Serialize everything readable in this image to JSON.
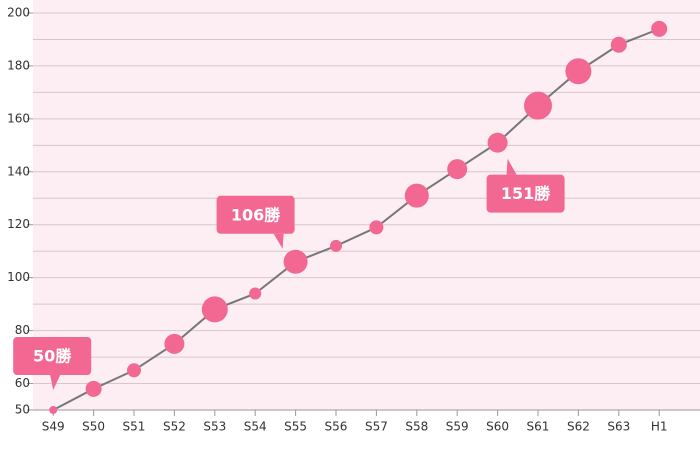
{
  "chart_data": {
    "type": "line",
    "categories": [
      "S49",
      "S50",
      "S51",
      "S52",
      "S53",
      "S54",
      "S55",
      "S56",
      "S57",
      "S58",
      "S59",
      "S60",
      "S61",
      "S62",
      "S63",
      "H1"
    ],
    "values": [
      50,
      58,
      65,
      75,
      88,
      94,
      106,
      112,
      119,
      131,
      141,
      151,
      165,
      178,
      188,
      194
    ],
    "sizes": [
      4,
      8,
      7,
      10,
      13,
      6,
      12,
      6,
      7,
      12,
      10,
      10,
      14,
      13,
      8,
      8
    ],
    "color": "#f26892",
    "line_color": "#777777",
    "ylim": [
      50,
      200
    ],
    "yticks": [
      50,
      60,
      80,
      100,
      120,
      140,
      160,
      180,
      200
    ],
    "minor_yticks": [
      70,
      90,
      110,
      130,
      150,
      170,
      190
    ],
    "grid": true,
    "annotations": [
      {
        "text": "50勝",
        "category": "S49",
        "position": "above"
      },
      {
        "text": "106勝",
        "category": "S55",
        "position": "above-left"
      },
      {
        "text": "151勝",
        "category": "S60",
        "position": "below"
      }
    ]
  }
}
